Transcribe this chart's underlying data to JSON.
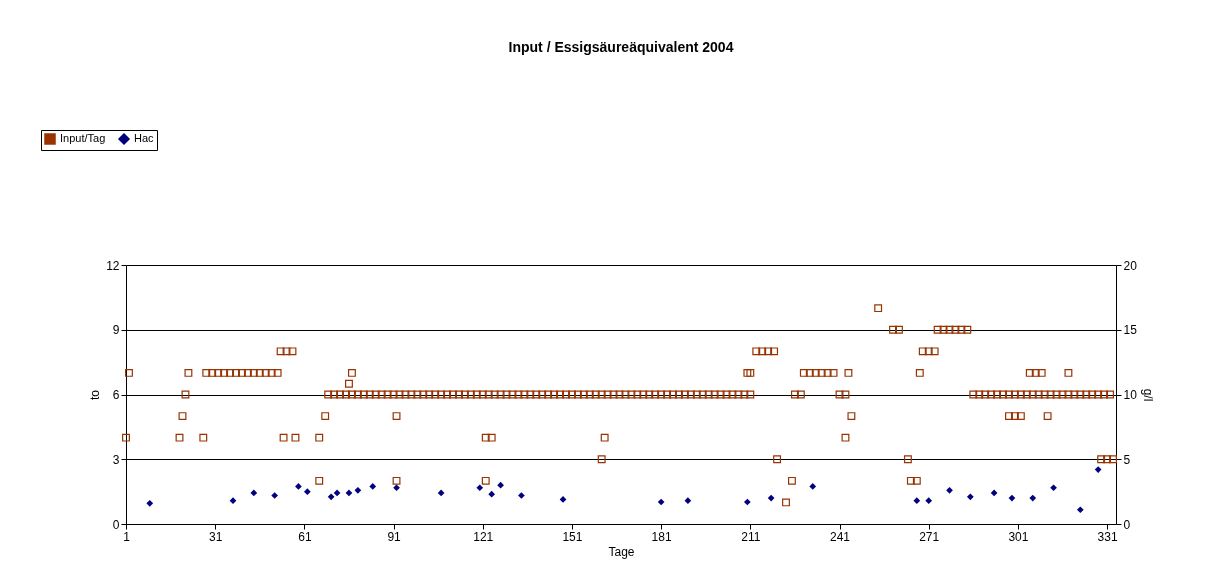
{
  "chart_data": {
    "type": "scatter",
    "title": "Input / Essigsäureäquivalent 2004",
    "xlabel": "Tage",
    "ylabel": "to",
    "y2label": "g/l",
    "xlim": [
      1,
      334
    ],
    "xticks": [
      1,
      31,
      61,
      91,
      121,
      151,
      181,
      211,
      241,
      271,
      301,
      331
    ],
    "ylim": [
      0,
      12
    ],
    "yticks": [
      0,
      3,
      6,
      9,
      12
    ],
    "y2lim": [
      0,
      20
    ],
    "y2ticks": [
      0,
      5,
      10,
      15,
      20
    ],
    "grid": "y",
    "legend": "top left",
    "series": [
      {
        "name": "Input/Tag",
        "color": "#993300",
        "marker": "square",
        "axis": "y",
        "x": [
          1,
          2,
          19,
          20,
          21,
          22,
          27,
          28,
          30,
          32,
          34,
          36,
          38,
          40,
          42,
          44,
          46,
          48,
          50,
          52,
          53,
          55,
          57,
          54,
          58,
          66,
          66,
          68,
          69,
          71,
          73,
          75,
          77,
          79,
          81,
          83,
          85,
          87,
          89,
          91,
          93,
          95,
          97,
          99,
          101,
          103,
          105,
          107,
          109,
          111,
          113,
          115,
          117,
          119,
          121,
          123,
          125,
          127,
          129,
          131,
          133,
          135,
          137,
          139,
          141,
          143,
          145,
          147,
          149,
          151,
          153,
          155,
          157,
          159,
          161,
          163,
          165,
          167,
          169,
          171,
          173,
          175,
          177,
          179,
          181,
          183,
          185,
          187,
          189,
          191,
          193,
          195,
          197,
          199,
          201,
          203,
          205,
          207,
          209,
          211,
          76,
          77,
          92,
          92,
          122,
          124,
          122,
          162,
          161,
          210,
          211,
          213,
          215,
          217,
          219,
          220,
          225,
          223,
          226,
          228,
          229,
          231,
          233,
          235,
          237,
          239,
          241,
          243,
          244,
          245,
          243,
          254,
          259,
          261,
          264,
          265,
          267,
          268,
          269,
          271,
          273,
          274,
          276,
          278,
          280,
          282,
          284,
          286,
          288,
          290,
          292,
          294,
          296,
          298,
          300,
          302,
          304,
          306,
          308,
          310,
          312,
          314,
          316,
          318,
          320,
          322,
          324,
          326,
          328,
          330,
          332,
          298,
          300,
          302,
          305,
          307,
          309,
          311,
          318,
          329,
          331,
          333
        ],
        "values": [
          4,
          7,
          4,
          5,
          6,
          7,
          4,
          7,
          7,
          7,
          7,
          7,
          7,
          7,
          7,
          7,
          7,
          7,
          7,
          7,
          8,
          8,
          8,
          4,
          4,
          2,
          4,
          5,
          6,
          6,
          6,
          6,
          6,
          6,
          6,
          6,
          6,
          6,
          6,
          6,
          6,
          6,
          6,
          6,
          6,
          6,
          6,
          6,
          6,
          6,
          6,
          6,
          6,
          6,
          6,
          6,
          6,
          6,
          6,
          6,
          6,
          6,
          6,
          6,
          6,
          6,
          6,
          6,
          6,
          6,
          6,
          6,
          6,
          6,
          6,
          6,
          6,
          6,
          6,
          6,
          6,
          6,
          6,
          6,
          6,
          6,
          6,
          6,
          6,
          6,
          6,
          6,
          6,
          6,
          6,
          6,
          6,
          6,
          6,
          6,
          6.5,
          7,
          5,
          2,
          4,
          4,
          2,
          4,
          3,
          7,
          7,
          8,
          8,
          8,
          8,
          3,
          2,
          1,
          6,
          6,
          7,
          7,
          7,
          7,
          7,
          7,
          6,
          6,
          7,
          5,
          4,
          10,
          9,
          9,
          3,
          2,
          2,
          7,
          8,
          8,
          8,
          9,
          9,
          9,
          9,
          9,
          9,
          6,
          6,
          6,
          6,
          6,
          6,
          6,
          6,
          6,
          6,
          6,
          6,
          6,
          6,
          6,
          6,
          6,
          6,
          6,
          6,
          6,
          6,
          6,
          6,
          5,
          5,
          5,
          7,
          7,
          7,
          5,
          7,
          3,
          3,
          3
        ]
      },
      {
        "name": "Hac",
        "color": "#000080",
        "marker": "diamond",
        "axis": "y2",
        "x": [
          9,
          37,
          44,
          51,
          59,
          62,
          70,
          72,
          76,
          79,
          84,
          92,
          107,
          120,
          124,
          127,
          134,
          148,
          181,
          190,
          210,
          218,
          232,
          267,
          271,
          278,
          285,
          293,
          299,
          306,
          313,
          322,
          328
        ],
        "values": [
          1.6,
          1.8,
          2.4,
          2.2,
          2.9,
          2.5,
          2.1,
          2.4,
          2.4,
          2.6,
          2.9,
          2.8,
          2.4,
          2.8,
          2.3,
          3.0,
          2.2,
          1.9,
          1.7,
          1.8,
          1.7,
          2.0,
          2.9,
          1.8,
          1.8,
          2.6,
          2.1,
          2.4,
          2.0,
          2.0,
          2.8,
          1.1,
          4.2
        ]
      }
    ]
  }
}
